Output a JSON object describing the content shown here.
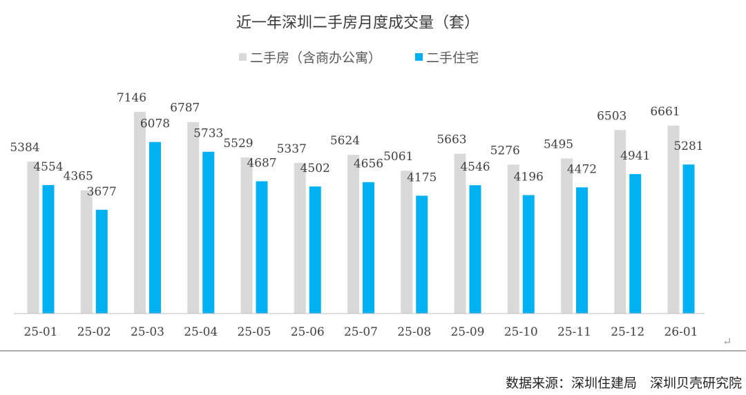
{
  "chart_data": {
    "type": "bar",
    "title": "近一年深圳二手房月度成交量（套）",
    "categories": [
      "25-01",
      "25-02",
      "25-03",
      "25-04",
      "25-05",
      "25-06",
      "25-07",
      "25-08",
      "25-09",
      "25-10",
      "25-11",
      "25-12",
      "26-01"
    ],
    "series": [
      {
        "name": "二手房（含商办公寓）",
        "color": "#d9d9d9",
        "values": [
          5384,
          4365,
          7146,
          6787,
          5529,
          5337,
          5624,
          5061,
          5663,
          5276,
          5495,
          6503,
          6661
        ]
      },
      {
        "name": "二手住宅",
        "color": "#00b0f0",
        "values": [
          4554,
          3677,
          6078,
          5733,
          4687,
          4502,
          4656,
          4175,
          4546,
          4196,
          4472,
          4941,
          5281
        ]
      }
    ],
    "ylim": [
      0,
      8000
    ],
    "grid": false,
    "legend_position": "top"
  },
  "source": "数据来源：深圳住建局　深圳贝壳研究院",
  "return_mark": "↵"
}
